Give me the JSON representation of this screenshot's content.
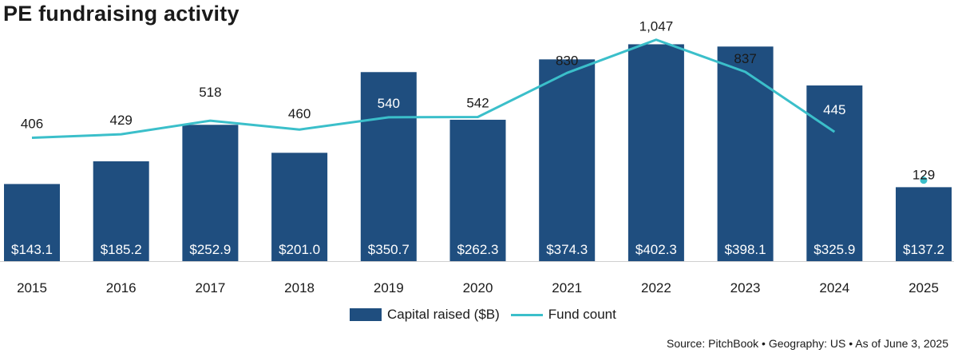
{
  "chart_data": {
    "type": "bar",
    "title": "PE fundraising activity",
    "categories": [
      "2015",
      "2016",
      "2017",
      "2018",
      "2019",
      "2020",
      "2021",
      "2022",
      "2023",
      "2024",
      "2025"
    ],
    "series": [
      {
        "name": "Capital raised ($B)",
        "kind": "bar",
        "values": [
          143.1,
          185.2,
          252.9,
          201.0,
          350.7,
          262.3,
          374.3,
          402.3,
          398.1,
          325.9,
          137.2
        ],
        "labels": [
          "$143.1",
          "$185.2",
          "$252.9",
          "$201.0",
          "$350.7",
          "$262.3",
          "$374.3",
          "$402.3",
          "$398.1",
          "$325.9",
          "$137.2"
        ],
        "color": "#1f4e7f"
      },
      {
        "name": "Fund count",
        "kind": "line",
        "values": [
          406,
          429,
          518,
          460,
          540,
          542,
          830,
          1047,
          837,
          445,
          129
        ],
        "labels": [
          "406",
          "429",
          "518",
          "460",
          "540",
          "542",
          "830",
          "1,047",
          "837",
          "445",
          "129"
        ],
        "color": "#3bbfca",
        "note": "2025 shown as a single point (not connected)"
      }
    ],
    "bar_ylim": [
      0,
      440
    ],
    "line_ylim": [
      -400,
      1150
    ],
    "grid": false,
    "legend": "bottom-center"
  },
  "legend": {
    "bar_label": "Capital raised ($B)",
    "line_label": "Fund count"
  },
  "footer": {
    "source": "Source: PitchBook  •  Geography: US  •  As of June 3, 2025"
  }
}
